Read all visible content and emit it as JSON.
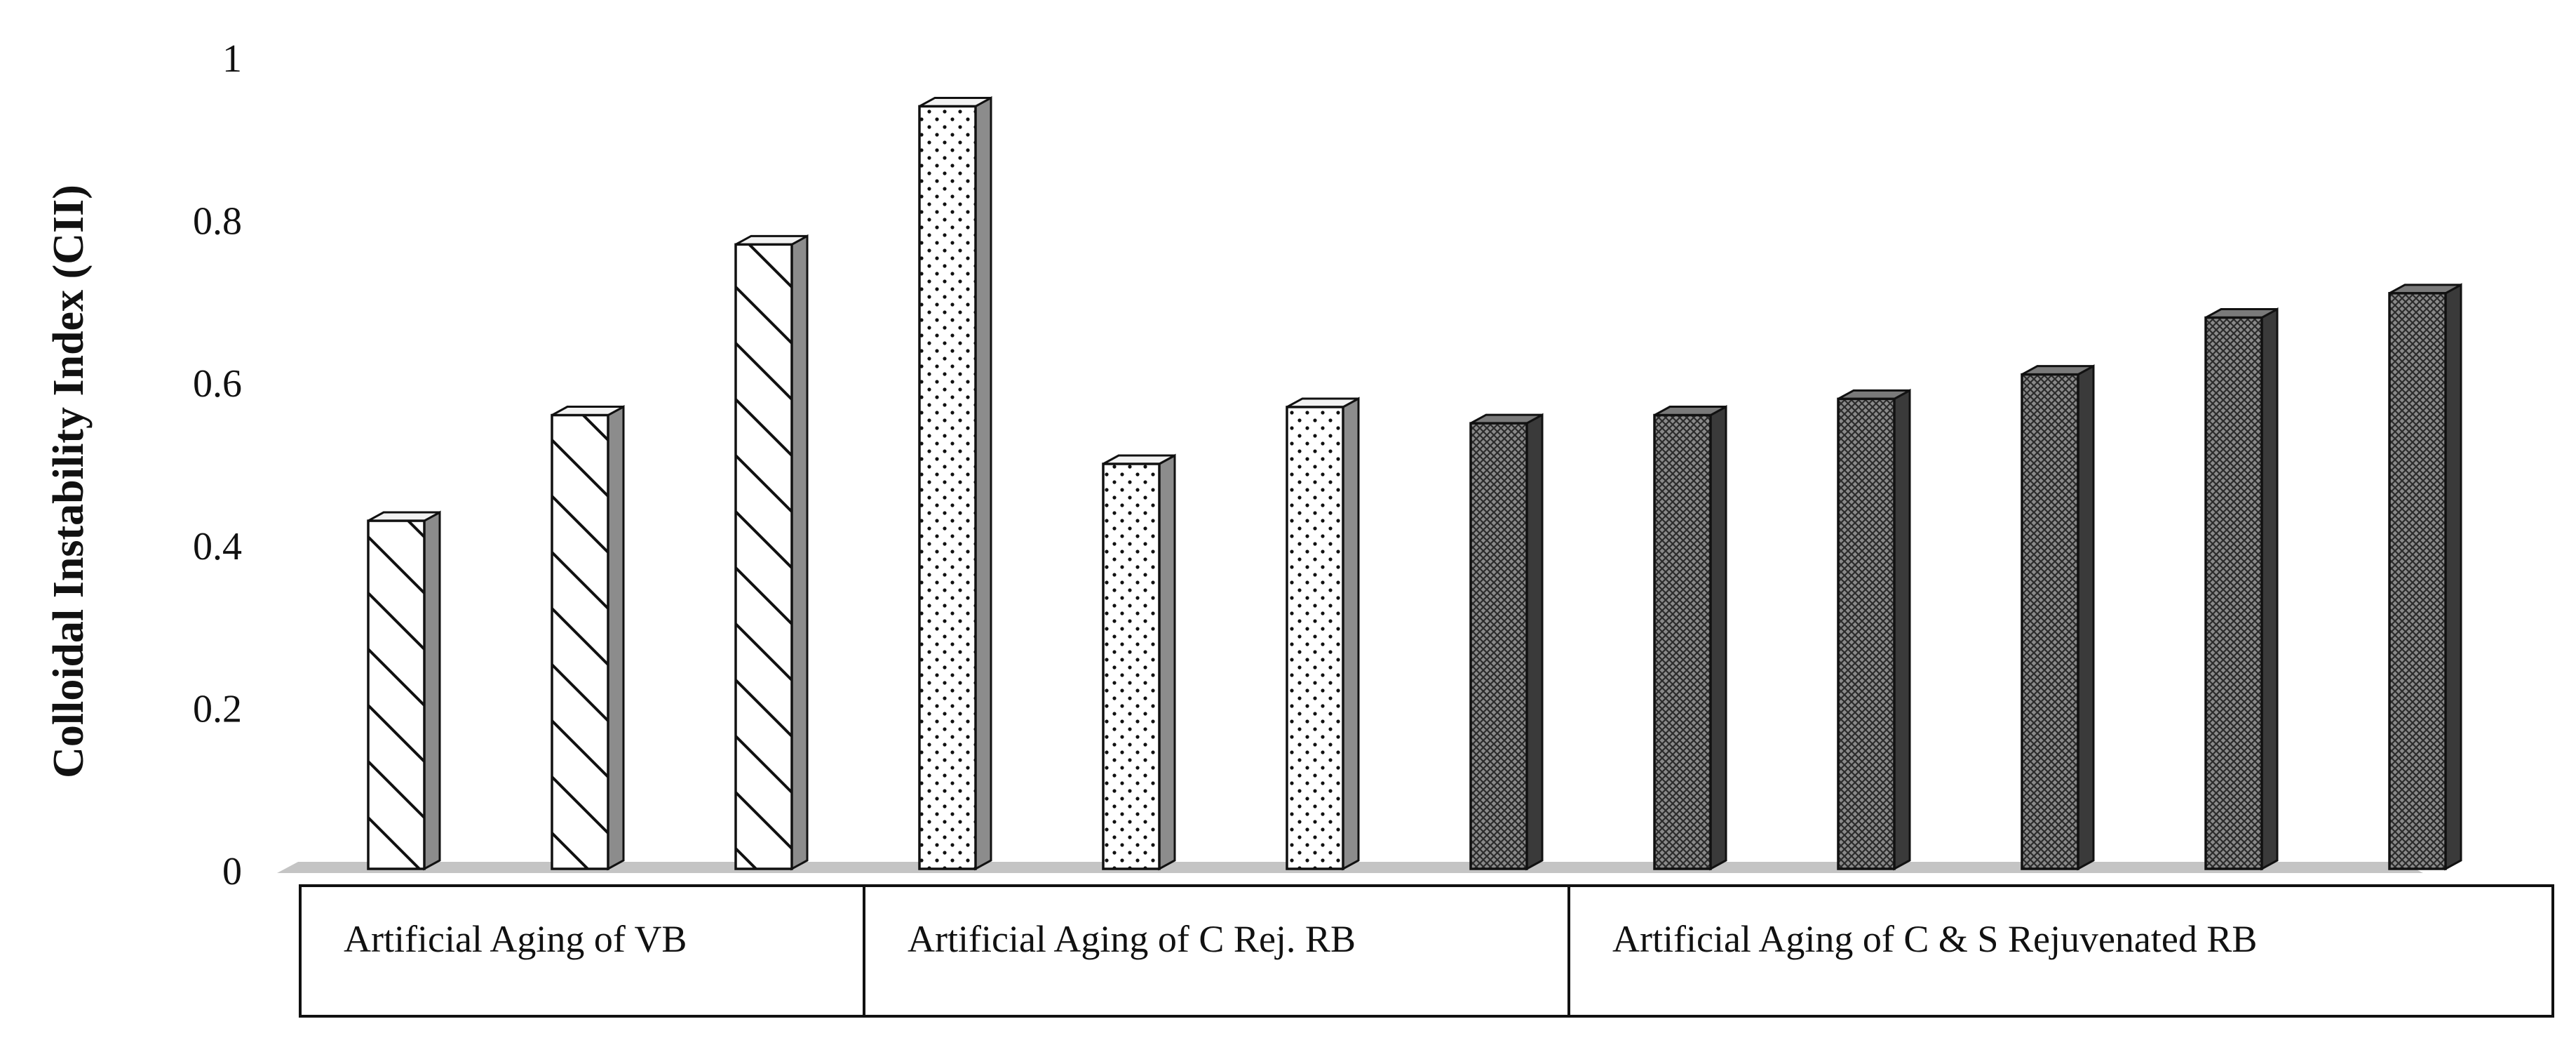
{
  "chart_data": {
    "type": "bar",
    "title": "",
    "xlabel": "",
    "ylabel": "Colloidal Instability Index (CII)",
    "ylim": [
      0,
      1
    ],
    "yticks": [
      "0",
      "0.2",
      "0.4",
      "0.6",
      "0.8",
      "1"
    ],
    "grid": false,
    "legend": "none",
    "groups": [
      {
        "label": "Artificial Aging of VB",
        "pattern": "diagonal-hatch",
        "values": [
          0.43,
          0.56,
          0.77
        ]
      },
      {
        "label": "Artificial Aging of C Rej. RB",
        "pattern": "dots",
        "values": [
          0.94,
          0.5,
          0.57
        ]
      },
      {
        "label": "Artificial Aging of C & S Rejuvenated RB",
        "pattern": "dark-crosshatch",
        "values": [
          0.55,
          0.56,
          0.58,
          0.61,
          0.68,
          0.71
        ]
      }
    ]
  }
}
